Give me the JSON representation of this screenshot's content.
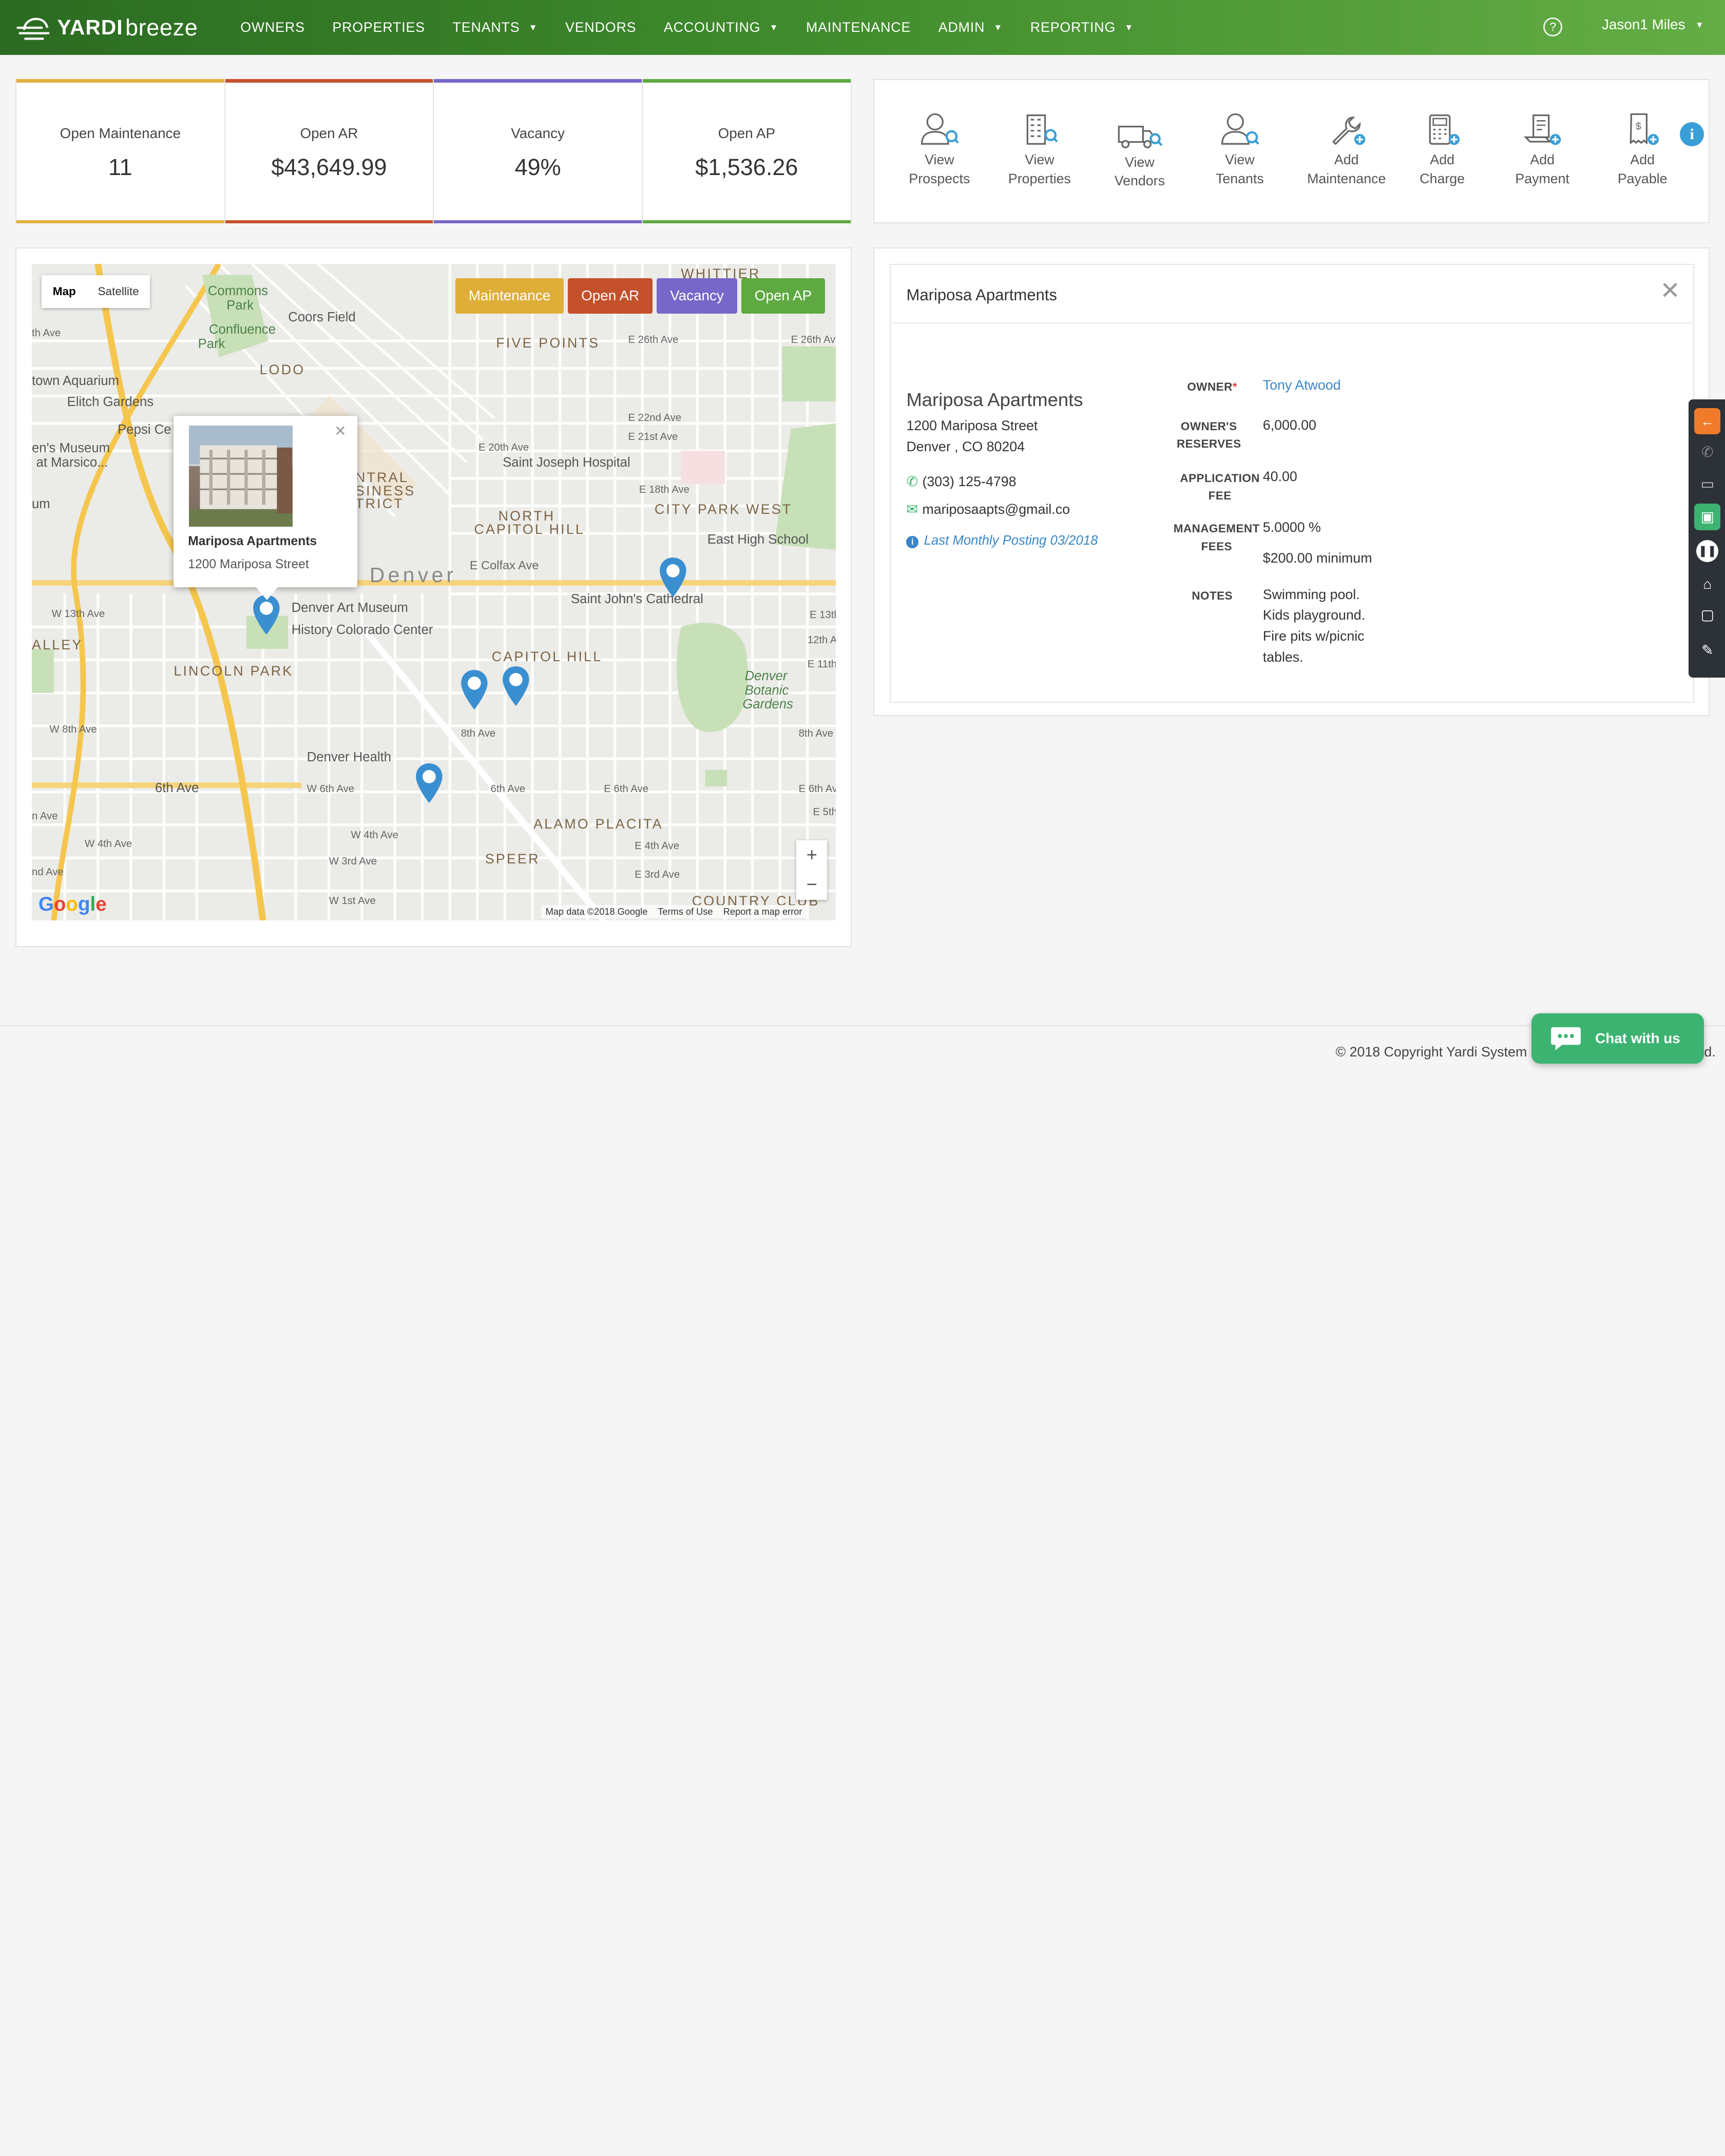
{
  "brand": {
    "yardi": "YARDI",
    "breeze": "breeze"
  },
  "nav": {
    "items": [
      {
        "label": "OWNERS",
        "dropdown": false
      },
      {
        "label": "PROPERTIES",
        "dropdown": false
      },
      {
        "label": "TENANTS",
        "dropdown": true
      },
      {
        "label": "VENDORS",
        "dropdown": false
      },
      {
        "label": "ACCOUNTING",
        "dropdown": true
      },
      {
        "label": "MAINTENANCE",
        "dropdown": false
      },
      {
        "label": "ADMIN",
        "dropdown": true
      },
      {
        "label": "REPORTING",
        "dropdown": true
      }
    ],
    "help": "?",
    "user": "Jason1 Miles"
  },
  "kpis": [
    {
      "label": "Open Maintenance",
      "value": "11",
      "color": "#e3b040"
    },
    {
      "label": "Open AR",
      "value": "$43,649.99",
      "color": "#c4502c"
    },
    {
      "label": "Vacancy",
      "value": "49%",
      "color": "#7667c9"
    },
    {
      "label": "Open AP",
      "value": "$1,536.26",
      "color": "#5ea942"
    }
  ],
  "quick_actions": [
    {
      "line1": "View",
      "line2": "Prospects",
      "icon": "prospect-search-icon"
    },
    {
      "line1": "View",
      "line2": "Properties",
      "icon": "building-search-icon"
    },
    {
      "line1": "View",
      "line2": "Vendors",
      "icon": "truck-search-icon"
    },
    {
      "line1": "View",
      "line2": "Tenants",
      "icon": "tenant-search-icon"
    },
    {
      "line1": "Add",
      "line2": "Maintenance",
      "icon": "wrench-add-icon"
    },
    {
      "line1": "Add",
      "line2": "Charge",
      "icon": "calculator-add-icon"
    },
    {
      "line1": "Add",
      "line2": "Payment",
      "icon": "payment-add-icon"
    },
    {
      "line1": "Add",
      "line2": "Payable",
      "icon": "receipt-add-icon"
    }
  ],
  "map": {
    "type_buttons": [
      "Map",
      "Satellite"
    ],
    "selected_type": "Map",
    "filters": [
      {
        "label": "Maintenance",
        "color": "#dfae38"
      },
      {
        "label": "Open AR",
        "color": "#c4502c"
      },
      {
        "label": "Vacancy",
        "color": "#7667c9"
      },
      {
        "label": "Open AP",
        "color": "#5ea942"
      }
    ],
    "popup": {
      "title": "Mariposa Apartments",
      "address": "1200 Mariposa Street"
    },
    "labels": {
      "commons": "Commons",
      "park": "Park",
      "confluence": "Confluence",
      "park2": "Park",
      "coors": "Coors Field",
      "lodo": "LODO",
      "aquarium": "town Aquarium",
      "elitch": "Elitch Gardens",
      "pepsi": "Pepsi Ce",
      "museum1": "en's Museum",
      "museum2": "at Marsico...",
      "fivepoints": "FIVE POINTS",
      "whittier": "WHITTIER",
      "e26": "E 26th Ave",
      "e26b": "E 26th Av",
      "e22": "E 22nd Ave",
      "e21": "E 21st Ave",
      "e20": "E 20th Ave",
      "e18": "E 18th Ave",
      "stjoseph": "Saint Joseph Hospital",
      "north": "NORTH",
      "capitolhill": "CAPITOL HILL",
      "cpwest": "CITY PARK WEST",
      "easthigh": "East High School",
      "colfax": "E Colfax Ave",
      "denver": "Denver",
      "artmuseum": "Denver Art Museum",
      "history": "History Colorado Center",
      "stjohn": "Saint John's Cathedral",
      "capitol": "CAPITOL HILL",
      "lincoln": "LINCOLN PARK",
      "botanic1": "Denver",
      "botanic2": "Botanic",
      "botanic3": "Gardens",
      "ntral": "NTRAL",
      "siness": "SINESS",
      "trict": "TRICT",
      "alley": "ALLEY",
      "w13": "W 13th Ave",
      "w8": "W 8th Ave",
      "w6": "6th Ave",
      "w6b": "W 6th Ave",
      "e6": "E 6th Ave",
      "e6b": "E 6th Ave",
      "avesixth": "6th Ave",
      "eighth": "8th Ave",
      "eighthb": "8th Ave",
      "health": "Denver Health",
      "alamo": "ALAMO PLACITA",
      "speer": "SPEER",
      "country": "COUNTRY CLUB",
      "w4": "W 4th Ave",
      "w4b": "W 4th Ave",
      "w3": "W 3rd Ave",
      "e4": "E 4th Ave",
      "e3": "E 3rd Ave",
      "w1": "W 1st Ave",
      "e13": "E 13th",
      "e12": "12th Av",
      "e11": "E 11th",
      "fifth": "E 5th",
      "sthave": "th Ave",
      "um": "um",
      "nave": "nd Ave",
      "aave": "n Ave"
    },
    "zoom_in": "+",
    "zoom_out": "−",
    "google": "Google",
    "attribution": [
      "Map data ©2018 Google",
      "Terms of Use",
      "Report a map error"
    ]
  },
  "detail": {
    "header": "Mariposa Apartments",
    "name": "Mariposa Apartments",
    "street": "1200 Mariposa Street",
    "city": "Denver , CO 80204",
    "phone": "(303) 125-4798",
    "email": "mariposaapts@gmail.co",
    "posting": "Last Monthly Posting 03/2018",
    "owner_label": "OWNER",
    "owner_req": "*",
    "owner_value": "Tony Atwood",
    "reserves_label1": "OWNER'S",
    "reserves_label2": "RESERVES",
    "reserves_value": "6,000.00",
    "appfee_label1": "APPLICATION",
    "appfee_label2": "FEE",
    "appfee_value": "40.00",
    "mgmt_label1": "MANAGEMENT",
    "mgmt_label2": "FEES",
    "mgmt_value1": "5.0000 %",
    "mgmt_value2": "$200.00 minimum",
    "notes_label": "NOTES",
    "notes": [
      "Swimming pool.",
      "Kids playground.",
      "Fire pits w/picnic",
      "tables."
    ]
  },
  "footer": {
    "copyright": "© 2018 Copyright Yardi System",
    "tail": "d.",
    "chat": "Chat with us"
  }
}
